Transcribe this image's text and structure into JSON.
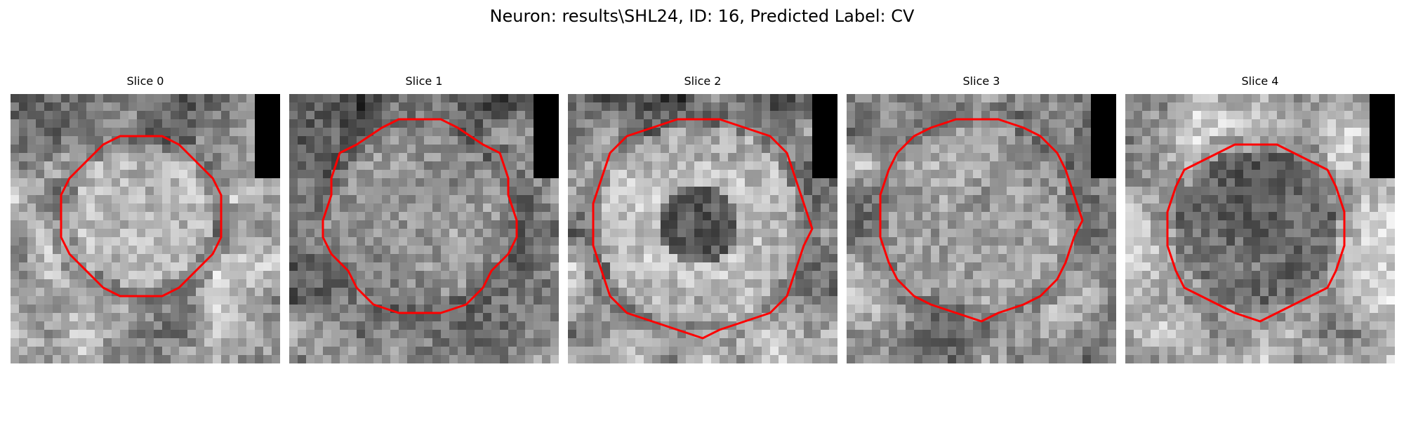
{
  "figure": {
    "title": "Neuron: results\\SHL24, ID: 16, Predicted Label: CV",
    "contour_color": "#ff0000",
    "panels": [
      {
        "title": "Slice 0",
        "center_brightness": "bright",
        "surround": "dark-top"
      },
      {
        "title": "Slice 1",
        "center_brightness": "medium",
        "surround": "mottled"
      },
      {
        "title": "Slice 2",
        "center_brightness": "ring-with-dark-core",
        "surround": "dark-top"
      },
      {
        "title": "Slice 3",
        "center_brightness": "medium-bright",
        "surround": "medium"
      },
      {
        "title": "Slice 4",
        "center_brightness": "dark",
        "surround": "bright"
      }
    ]
  }
}
